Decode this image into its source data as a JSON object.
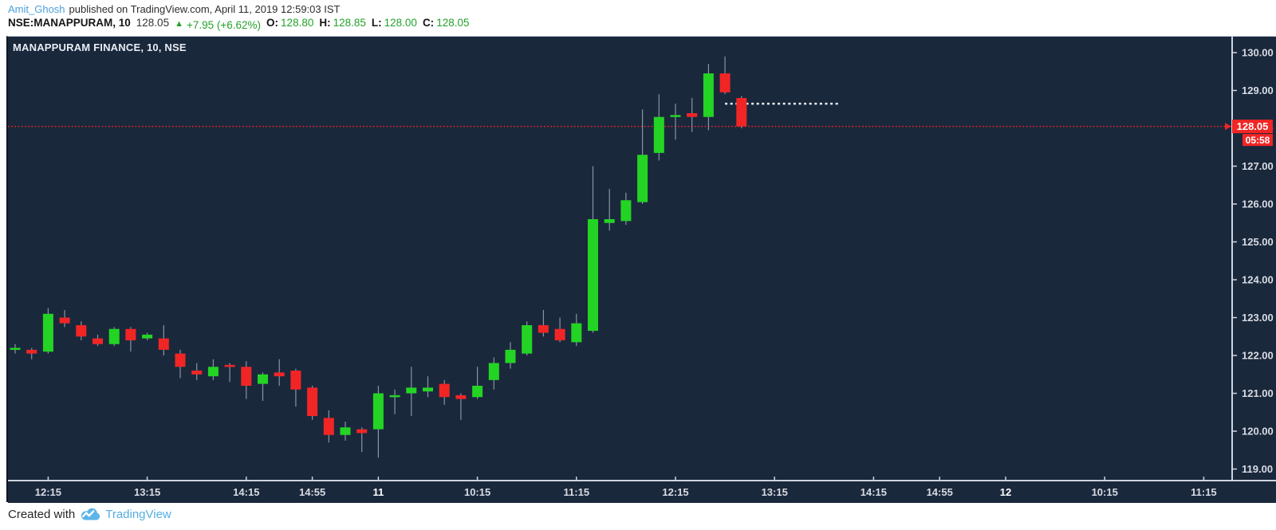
{
  "header": {
    "author": "Amit_Ghosh",
    "publish_text": "published on TradingView.com, April 11, 2019 12:59:03 IST",
    "symbol": "NSE:MANAPPURAM, 10",
    "last_price": "128.05",
    "change_arrow": "▲",
    "change_text": "+7.95 (+6.62%)",
    "ohlc": [
      {
        "label": "O:",
        "value": "128.80"
      },
      {
        "label": "H:",
        "value": "128.85"
      },
      {
        "label": "L:",
        "value": "128.00"
      },
      {
        "label": "C:",
        "value": "128.05"
      }
    ]
  },
  "chart": {
    "title": "MANAPPURAM FINANCE, 10, NSE"
  },
  "footer": {
    "created_with": "Created with",
    "brand": "TradingView"
  },
  "chart_data": {
    "type": "candlestick",
    "symbol": "MANAPPURAM FINANCE",
    "exchange": "NSE",
    "interval_minutes": 10,
    "ylim": [
      118.8,
      130.4
    ],
    "grid": false,
    "colors": {
      "background": "#1a283c",
      "bull": "#24d424",
      "bear": "#f22525",
      "wick": "#8a94a3",
      "axis_line": "#cfd4de",
      "axis_text": "#d8dce3",
      "day_label": "#ffffff",
      "price_line": "#f22525",
      "dotted_level": "#e9f0fb"
    },
    "y_ticks": [
      {
        "price": 130,
        "label": "130.00"
      },
      {
        "price": 129,
        "label": "129.00"
      },
      {
        "price": 128,
        "label": "128.00"
      },
      {
        "price": 127,
        "label": "127.00"
      },
      {
        "price": 126,
        "label": "126.00"
      },
      {
        "price": 125,
        "label": "125.00"
      },
      {
        "price": 124,
        "label": "124.00"
      },
      {
        "price": 123,
        "label": "123.00"
      },
      {
        "price": 122,
        "label": "122.00"
      },
      {
        "price": 121,
        "label": "121.00"
      },
      {
        "price": 120,
        "label": "120.00"
      },
      {
        "price": 119,
        "label": "119.00"
      }
    ],
    "x_ticks": [
      {
        "label": "12:15",
        "index": 2,
        "is_day": false
      },
      {
        "label": "13:15",
        "index": 8,
        "is_day": false
      },
      {
        "label": "14:15",
        "index": 14,
        "is_day": false
      },
      {
        "label": "14:55",
        "index": 18,
        "is_day": false
      },
      {
        "label": "11",
        "index": 22,
        "is_day": true
      },
      {
        "label": "10:15",
        "index": 28,
        "is_day": false
      },
      {
        "label": "11:15",
        "index": 34,
        "is_day": false
      },
      {
        "label": "12:15",
        "index": 40,
        "is_day": false
      },
      {
        "label": "13:15",
        "index": 46,
        "is_day": false
      },
      {
        "label": "14:15",
        "index": 52,
        "is_day": false
      },
      {
        "label": "14:55",
        "index": 56,
        "is_day": false
      },
      {
        "label": "12",
        "index": 60,
        "is_day": true
      },
      {
        "label": "10:15",
        "index": 66,
        "is_day": false
      },
      {
        "label": "11:15",
        "index": 72,
        "is_day": false
      }
    ],
    "candles": [
      {
        "d": "Apr 10",
        "t": "11:55",
        "o": 122.15,
        "h": 122.3,
        "l": 122.05,
        "c": 122.2
      },
      {
        "d": "Apr 10",
        "t": "12:05",
        "o": 122.15,
        "h": 122.2,
        "l": 121.9,
        "c": 122.05
      },
      {
        "d": "Apr 10",
        "t": "12:15",
        "o": 122.1,
        "h": 123.25,
        "l": 122.05,
        "c": 123.1
      },
      {
        "d": "Apr 10",
        "t": "12:25",
        "o": 123.0,
        "h": 123.2,
        "l": 122.75,
        "c": 122.85
      },
      {
        "d": "Apr 10",
        "t": "12:35",
        "o": 122.8,
        "h": 122.9,
        "l": 122.4,
        "c": 122.5
      },
      {
        "d": "Apr 10",
        "t": "12:45",
        "o": 122.45,
        "h": 122.55,
        "l": 122.25,
        "c": 122.3
      },
      {
        "d": "Apr 10",
        "t": "12:55",
        "o": 122.3,
        "h": 122.75,
        "l": 122.25,
        "c": 122.7
      },
      {
        "d": "Apr 10",
        "t": "13:05",
        "o": 122.7,
        "h": 122.75,
        "l": 122.1,
        "c": 122.4
      },
      {
        "d": "Apr 10",
        "t": "13:15",
        "o": 122.45,
        "h": 122.6,
        "l": 122.4,
        "c": 122.55
      },
      {
        "d": "Apr 10",
        "t": "13:25",
        "o": 122.45,
        "h": 122.8,
        "l": 122.0,
        "c": 122.15
      },
      {
        "d": "Apr 10",
        "t": "13:35",
        "o": 122.05,
        "h": 122.15,
        "l": 121.4,
        "c": 121.7
      },
      {
        "d": "Apr 10",
        "t": "13:45",
        "o": 121.6,
        "h": 121.8,
        "l": 121.35,
        "c": 121.5
      },
      {
        "d": "Apr 10",
        "t": "13:55",
        "o": 121.45,
        "h": 121.9,
        "l": 121.35,
        "c": 121.7
      },
      {
        "d": "Apr 10",
        "t": "14:05",
        "o": 121.75,
        "h": 121.8,
        "l": 121.3,
        "c": 121.7
      },
      {
        "d": "Apr 10",
        "t": "14:15",
        "o": 121.7,
        "h": 121.85,
        "l": 120.85,
        "c": 121.2
      },
      {
        "d": "Apr 10",
        "t": "14:25",
        "o": 121.25,
        "h": 121.55,
        "l": 120.8,
        "c": 121.5
      },
      {
        "d": "Apr 10",
        "t": "14:35",
        "o": 121.55,
        "h": 121.9,
        "l": 121.2,
        "c": 121.45
      },
      {
        "d": "Apr 10",
        "t": "14:45",
        "o": 121.6,
        "h": 121.65,
        "l": 120.65,
        "c": 121.1
      },
      {
        "d": "Apr 10",
        "t": "14:55",
        "o": 121.15,
        "h": 121.2,
        "l": 120.3,
        "c": 120.4
      },
      {
        "d": "Apr 10",
        "t": "15:05",
        "o": 120.35,
        "h": 120.55,
        "l": 119.7,
        "c": 119.9
      },
      {
        "d": "Apr 10",
        "t": "15:15",
        "o": 119.9,
        "h": 120.25,
        "l": 119.75,
        "c": 120.1
      },
      {
        "d": "Apr 10",
        "t": "15:25",
        "o": 120.05,
        "h": 120.1,
        "l": 119.45,
        "c": 119.95
      },
      {
        "d": "Apr 11",
        "t": "09:15",
        "o": 120.05,
        "h": 121.2,
        "l": 119.3,
        "c": 121.0
      },
      {
        "d": "Apr 11",
        "t": "09:25",
        "o": 120.9,
        "h": 121.1,
        "l": 120.45,
        "c": 120.95
      },
      {
        "d": "Apr 11",
        "t": "09:35",
        "o": 121.0,
        "h": 121.7,
        "l": 120.4,
        "c": 121.15
      },
      {
        "d": "Apr 11",
        "t": "09:45",
        "o": 121.05,
        "h": 121.45,
        "l": 120.9,
        "c": 121.15
      },
      {
        "d": "Apr 11",
        "t": "09:55",
        "o": 121.25,
        "h": 121.35,
        "l": 120.7,
        "c": 120.9
      },
      {
        "d": "Apr 11",
        "t": "10:05",
        "o": 120.95,
        "h": 121.0,
        "l": 120.3,
        "c": 120.85
      },
      {
        "d": "Apr 11",
        "t": "10:15",
        "o": 120.9,
        "h": 121.7,
        "l": 120.85,
        "c": 121.2
      },
      {
        "d": "Apr 11",
        "t": "10:25",
        "o": 121.35,
        "h": 121.95,
        "l": 121.1,
        "c": 121.8
      },
      {
        "d": "Apr 11",
        "t": "10:35",
        "o": 121.8,
        "h": 122.35,
        "l": 121.65,
        "c": 122.15
      },
      {
        "d": "Apr 11",
        "t": "10:45",
        "o": 122.05,
        "h": 122.9,
        "l": 122.0,
        "c": 122.8
      },
      {
        "d": "Apr 11",
        "t": "10:55",
        "o": 122.8,
        "h": 123.2,
        "l": 122.5,
        "c": 122.6
      },
      {
        "d": "Apr 11",
        "t": "11:05",
        "o": 122.7,
        "h": 123.0,
        "l": 122.35,
        "c": 122.4
      },
      {
        "d": "Apr 11",
        "t": "11:15",
        "o": 122.35,
        "h": 123.1,
        "l": 122.25,
        "c": 122.85
      },
      {
        "d": "Apr 11",
        "t": "11:25",
        "o": 122.65,
        "h": 127.0,
        "l": 122.6,
        "c": 125.6
      },
      {
        "d": "Apr 11",
        "t": "11:35",
        "o": 125.5,
        "h": 126.4,
        "l": 125.3,
        "c": 125.6
      },
      {
        "d": "Apr 11",
        "t": "11:45",
        "o": 125.55,
        "h": 126.3,
        "l": 125.45,
        "c": 126.1
      },
      {
        "d": "Apr 11",
        "t": "11:55",
        "o": 126.05,
        "h": 128.5,
        "l": 126.0,
        "c": 127.3
      },
      {
        "d": "Apr 11",
        "t": "12:05",
        "o": 127.35,
        "h": 128.9,
        "l": 127.15,
        "c": 128.3
      },
      {
        "d": "Apr 11",
        "t": "12:15",
        "o": 128.3,
        "h": 128.65,
        "l": 127.7,
        "c": 128.35
      },
      {
        "d": "Apr 11",
        "t": "12:25",
        "o": 128.4,
        "h": 128.8,
        "l": 127.9,
        "c": 128.3
      },
      {
        "d": "Apr 11",
        "t": "12:35",
        "o": 128.3,
        "h": 129.7,
        "l": 127.95,
        "c": 129.45
      },
      {
        "d": "Apr 11",
        "t": "12:45",
        "o": 129.45,
        "h": 129.9,
        "l": 128.9,
        "c": 128.95
      },
      {
        "d": "Apr 11",
        "t": "12:55",
        "o": 128.8,
        "h": 128.85,
        "l": 128.0,
        "c": 128.05
      }
    ],
    "price_line": {
      "price": 128.05,
      "label": "128.05",
      "countdown": "05:58"
    },
    "dotted_level": {
      "price": 128.65,
      "from_index": 43,
      "to_index": 50
    }
  }
}
